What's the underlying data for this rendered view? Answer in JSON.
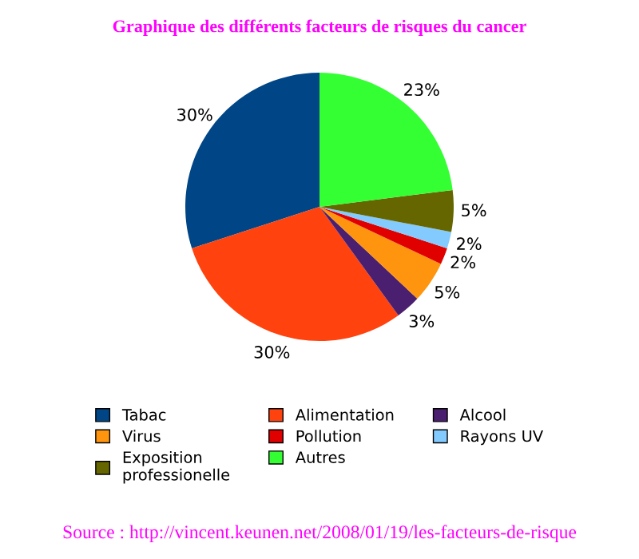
{
  "chart_data": {
    "type": "pie",
    "title": "Graphique des différents facteurs de risques du cancer",
    "categories": [
      "Tabac",
      "Alimentation",
      "Alcool",
      "Virus",
      "Pollution",
      "Rayons UV",
      "Exposition professionelle",
      "Autres"
    ],
    "values": [
      30,
      30,
      3,
      5,
      2,
      2,
      5,
      23
    ],
    "value_labels": [
      "30%",
      "30%",
      "3%",
      "5%",
      "2%",
      "2%",
      "5%",
      "23%"
    ],
    "colors": [
      "#004586",
      "#ff420e",
      "#4b1f6f",
      "#ff950e",
      "#e00000",
      "#83caff",
      "#666600",
      "#33ff33"
    ],
    "legend": "bottom",
    "annotations": [
      "Source : http://vincent.keunen.net/2008/01/19/les-facteurs-de-risque"
    ]
  }
}
